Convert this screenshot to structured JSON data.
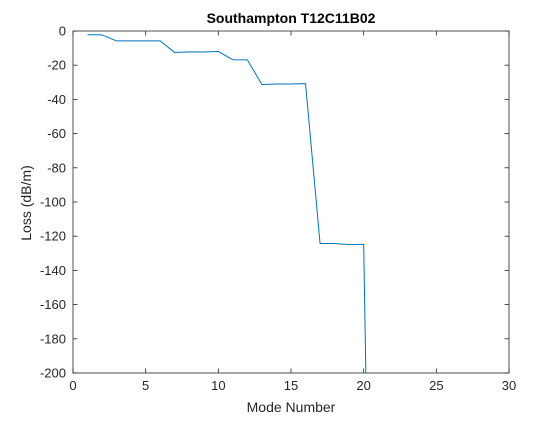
{
  "chart_data": {
    "type": "line",
    "title": "Southampton T12C11B02",
    "xlabel": "Mode Number",
    "ylabel": "Loss (dB/m)",
    "xlim": [
      0,
      30
    ],
    "ylim": [
      -200,
      0
    ],
    "xticks": [
      0,
      5,
      10,
      15,
      20,
      25,
      30
    ],
    "yticks": [
      0,
      -20,
      -40,
      -60,
      -80,
      -100,
      -120,
      -140,
      -160,
      -180,
      -200
    ],
    "grid": false,
    "series": [
      {
        "color": "#0072bd",
        "points": [
          [
            1,
            -2.2
          ],
          [
            2,
            -2.3
          ],
          [
            3,
            -5.8
          ],
          [
            4,
            -5.8
          ],
          [
            5,
            -5.8
          ],
          [
            6,
            -5.8
          ],
          [
            7,
            -12.6
          ],
          [
            8,
            -12.2
          ],
          [
            9,
            -12.3
          ],
          [
            10,
            -12.0
          ],
          [
            11,
            -16.8
          ],
          [
            12,
            -16.9
          ],
          [
            13,
            -31.3
          ],
          [
            14,
            -31.0
          ],
          [
            15,
            -31.0
          ],
          [
            16,
            -30.8
          ],
          [
            17,
            -124.3
          ],
          [
            18,
            -124.3
          ],
          [
            19,
            -124.9
          ],
          [
            20,
            -124.7
          ],
          [
            20.15,
            -200
          ]
        ]
      }
    ]
  }
}
